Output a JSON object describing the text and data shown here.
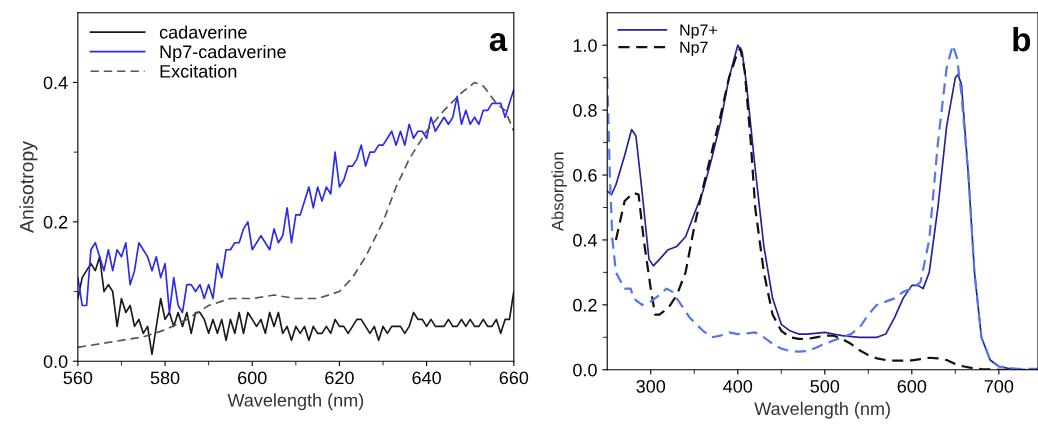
{
  "chart_data": [
    {
      "type": "line",
      "xlabel": "Wavelength (nm)",
      "ylabel": "Anisotropy",
      "xlim": [
        560,
        660
      ],
      "ylim": [
        0,
        0.5
      ],
      "xticks": [
        560,
        {
          "value": 570,
          "label": null
        },
        580,
        {
          "value": 590,
          "label": null
        },
        600,
        {
          "value": 610,
          "label": null
        },
        620,
        {
          "value": 630,
          "label": null
        },
        640,
        {
          "value": 650,
          "label": null
        },
        660
      ],
      "yticks": [
        {
          "value": 0,
          "label": "0.0"
        },
        {
          "value": 0.1,
          "label": null
        },
        0.2,
        {
          "value": 0.3,
          "label": null
        },
        0.4
      ],
      "legend": "top left",
      "grid": false,
      "annotations": [
        "a"
      ],
      "series": [
        {
          "name": "cadaverine",
          "color": "#1a1a1a",
          "line_style": "solid",
          "x": [
            560,
            561,
            562,
            563,
            564,
            565,
            566,
            567,
            568,
            569,
            570,
            571,
            572,
            573,
            574,
            575,
            576,
            577,
            578,
            579,
            580,
            581,
            582,
            583,
            584,
            585,
            586,
            587,
            588,
            589,
            590,
            591,
            592,
            593,
            594,
            595,
            596,
            597,
            598,
            599,
            600,
            601,
            602,
            603,
            604,
            605,
            606,
            607,
            608,
            609,
            610,
            611,
            612,
            613,
            614,
            615,
            616,
            617,
            618,
            619,
            620,
            621,
            622,
            623,
            624,
            625,
            626,
            627,
            628,
            629,
            630,
            631,
            632,
            633,
            634,
            635,
            636,
            637,
            638,
            639,
            640,
            641,
            642,
            643,
            644,
            645,
            646,
            647,
            648,
            649,
            650,
            651,
            652,
            653,
            654,
            655,
            656,
            657,
            658,
            659,
            660
          ],
          "values": [
            0.09,
            0.12,
            0.13,
            0.14,
            0.13,
            0.15,
            0.1,
            0.11,
            0.1,
            0.05,
            0.09,
            0.07,
            0.08,
            0.05,
            0.06,
            0.04,
            0.05,
            0.01,
            0.05,
            0.09,
            0.06,
            0.07,
            0.05,
            0.07,
            0.05,
            0.07,
            0.04,
            0.07,
            0.07,
            0.06,
            0.04,
            0.06,
            0.04,
            0.06,
            0.03,
            0.06,
            0.04,
            0.07,
            0.04,
            0.07,
            0.06,
            0.05,
            0.06,
            0.04,
            0.07,
            0.05,
            0.07,
            0.04,
            0.05,
            0.03,
            0.05,
            0.04,
            0.05,
            0.03,
            0.05,
            0.04,
            0.04,
            0.05,
            0.04,
            0.06,
            0.05,
            0.05,
            0.04,
            0.05,
            0.06,
            0.06,
            0.05,
            0.04,
            0.05,
            0.03,
            0.05,
            0.04,
            0.05,
            0.05,
            0.05,
            0.04,
            0.05,
            0.07,
            0.06,
            0.06,
            0.05,
            0.06,
            0.05,
            0.05,
            0.05,
            0.06,
            0.05,
            0.05,
            0.06,
            0.05,
            0.06,
            0.05,
            0.05,
            0.06,
            0.05,
            0.05,
            0.06,
            0.04,
            0.06,
            0.06,
            0.1
          ]
        },
        {
          "name": "Np7-cadaverine",
          "color": "#2a2af0",
          "line_style": "solid",
          "x": [
            560,
            561,
            562,
            563,
            564,
            565,
            566,
            567,
            568,
            569,
            570,
            571,
            572,
            573,
            574,
            575,
            576,
            577,
            578,
            579,
            580,
            581,
            582,
            583,
            584,
            585,
            586,
            587,
            588,
            589,
            590,
            591,
            592,
            593,
            594,
            595,
            596,
            597,
            598,
            599,
            600,
            601,
            602,
            603,
            604,
            605,
            606,
            607,
            608,
            609,
            610,
            611,
            612,
            613,
            614,
            615,
            616,
            617,
            618,
            619,
            620,
            621,
            622,
            623,
            624,
            625,
            626,
            627,
            628,
            629,
            630,
            631,
            632,
            633,
            634,
            635,
            636,
            637,
            638,
            639,
            640,
            641,
            642,
            643,
            644,
            645,
            646,
            647,
            648,
            649,
            650,
            651,
            652,
            653,
            654,
            655,
            656,
            657,
            658,
            659,
            660
          ],
          "values": [
            0.12,
            0.08,
            0.08,
            0.16,
            0.17,
            0.15,
            0.13,
            0.16,
            0.13,
            0.16,
            0.15,
            0.17,
            0.11,
            0.13,
            0.17,
            0.16,
            0.15,
            0.13,
            0.15,
            0.12,
            0.14,
            0.07,
            0.12,
            0.08,
            0.07,
            0.11,
            0.11,
            0.1,
            0.11,
            0.09,
            0.11,
            0.09,
            0.14,
            0.12,
            0.16,
            0.16,
            0.17,
            0.17,
            0.19,
            0.2,
            0.16,
            0.17,
            0.18,
            0.17,
            0.16,
            0.19,
            0.17,
            0.18,
            0.22,
            0.17,
            0.21,
            0.21,
            0.23,
            0.25,
            0.22,
            0.25,
            0.23,
            0.25,
            0.24,
            0.3,
            0.25,
            0.26,
            0.28,
            0.28,
            0.29,
            0.31,
            0.28,
            0.3,
            0.3,
            0.31,
            0.31,
            0.32,
            0.33,
            0.31,
            0.33,
            0.31,
            0.34,
            0.32,
            0.33,
            0.33,
            0.32,
            0.35,
            0.33,
            0.34,
            0.35,
            0.34,
            0.35,
            0.38,
            0.34,
            0.36,
            0.34,
            0.35,
            0.34,
            0.36,
            0.36,
            0.37,
            0.37,
            0.37,
            0.35,
            0.37,
            0.39
          ]
        },
        {
          "name": "Excitation",
          "color": "#555555",
          "line_style": "dashed",
          "x": [
            560,
            565,
            570,
            575,
            580,
            585,
            590,
            595,
            600,
            605,
            610,
            615,
            620,
            623,
            626,
            630,
            633,
            636,
            640,
            644,
            648,
            651,
            653,
            656,
            658,
            660
          ],
          "values": [
            0.02,
            0.025,
            0.03,
            0.035,
            0.045,
            0.06,
            0.08,
            0.09,
            0.09,
            0.095,
            0.09,
            0.09,
            0.1,
            0.12,
            0.15,
            0.2,
            0.25,
            0.29,
            0.33,
            0.36,
            0.385,
            0.4,
            0.395,
            0.37,
            0.36,
            0.33
          ]
        }
      ]
    },
    {
      "type": "line",
      "xlabel": "Wavelength (nm)",
      "ylabel": "Absorption",
      "xlim": [
        250,
        745
      ],
      "ylim": [
        0,
        1.1
      ],
      "xticks": [
        300,
        {
          "value": 350,
          "label": null
        },
        400,
        {
          "value": 450,
          "label": null
        },
        500,
        {
          "value": 550,
          "label": null
        },
        600,
        {
          "value": 650,
          "label": null
        },
        700
      ],
      "yticks": [
        {
          "value": 0,
          "label": "0.0"
        },
        {
          "value": 0.1,
          "label": null
        },
        0.2,
        {
          "value": 0.3,
          "label": null
        },
        0.4,
        {
          "value": 0.5,
          "label": null
        },
        0.6,
        {
          "value": 0.7,
          "label": null
        },
        0.8,
        {
          "value": 0.9,
          "label": null
        },
        {
          "value": 1.0,
          "label": "1.0"
        }
      ],
      "legend": "top left",
      "grid": false,
      "annotations": [
        "b"
      ],
      "series": [
        {
          "name": "Np7+",
          "color": "#22229c",
          "line_style": "solid",
          "x": [
            250,
            255,
            260,
            270,
            278,
            283,
            290,
            298,
            303,
            310,
            320,
            330,
            340,
            350,
            360,
            370,
            380,
            390,
            400,
            405,
            410,
            420,
            430,
            440,
            450,
            460,
            470,
            480,
            500,
            510,
            520,
            540,
            560,
            570,
            580,
            590,
            600,
            607,
            613,
            620,
            630,
            640,
            650,
            653,
            657,
            665,
            672,
            680,
            690,
            700,
            720,
            745
          ],
          "values": [
            0.55,
            0.54,
            0.57,
            0.66,
            0.74,
            0.72,
            0.55,
            0.34,
            0.32,
            0.34,
            0.37,
            0.38,
            0.41,
            0.48,
            0.55,
            0.65,
            0.76,
            0.9,
            1.0,
            0.98,
            0.88,
            0.62,
            0.38,
            0.22,
            0.14,
            0.12,
            0.11,
            0.11,
            0.115,
            0.11,
            0.105,
            0.1,
            0.1,
            0.11,
            0.16,
            0.22,
            0.26,
            0.26,
            0.25,
            0.3,
            0.5,
            0.75,
            0.9,
            0.91,
            0.88,
            0.6,
            0.3,
            0.1,
            0.03,
            0.01,
            0.0,
            0.0
          ]
        },
        {
          "name": "Np7",
          "color": "#111111",
          "line_style": "dashed",
          "x": [
            260,
            270,
            280,
            286,
            292,
            300,
            305,
            310,
            320,
            330,
            340,
            350,
            360,
            370,
            380,
            390,
            400,
            403,
            408,
            415,
            420,
            430,
            440,
            450,
            460,
            470,
            480,
            490,
            500,
            510,
            520,
            530,
            540,
            550,
            560,
            570,
            580,
            590,
            600,
            610,
            620,
            630,
            640,
            650,
            660,
            670,
            680,
            700,
            745
          ],
          "values": [
            0.4,
            0.52,
            0.545,
            0.54,
            0.4,
            0.25,
            0.17,
            0.17,
            0.19,
            0.23,
            0.3,
            0.44,
            0.56,
            0.67,
            0.78,
            0.9,
            0.98,
            0.99,
            0.92,
            0.7,
            0.5,
            0.3,
            0.17,
            0.12,
            0.1,
            0.095,
            0.095,
            0.1,
            0.105,
            0.105,
            0.095,
            0.08,
            0.06,
            0.045,
            0.035,
            0.03,
            0.028,
            0.028,
            0.029,
            0.033,
            0.037,
            0.035,
            0.03,
            0.018,
            0.01,
            0.005,
            0.002,
            0.0,
            0.0
          ]
        },
        {
          "color": "#5577ee",
          "line_style": "dashed",
          "x": [
            250,
            253,
            256,
            260,
            270,
            277,
            280,
            290,
            300,
            310,
            318,
            325,
            335,
            345,
            360,
            370,
            380,
            390,
            400,
            410,
            420,
            430,
            440,
            450,
            460,
            470,
            480,
            490,
            500,
            510,
            520,
            530,
            540,
            550,
            560,
            570,
            580,
            590,
            600,
            610,
            620,
            630,
            640,
            647,
            652,
            657,
            665,
            672,
            680,
            690,
            700,
            720,
            745
          ],
          "values": [
            0.9,
            0.6,
            0.4,
            0.3,
            0.25,
            0.25,
            0.22,
            0.2,
            0.21,
            0.23,
            0.25,
            0.24,
            0.2,
            0.16,
            0.12,
            0.1,
            0.105,
            0.115,
            0.11,
            0.112,
            0.115,
            0.1,
            0.08,
            0.065,
            0.058,
            0.056,
            0.058,
            0.068,
            0.08,
            0.09,
            0.1,
            0.11,
            0.13,
            0.17,
            0.2,
            0.21,
            0.22,
            0.24,
            0.25,
            0.27,
            0.4,
            0.7,
            0.93,
            1.0,
            0.96,
            0.85,
            0.6,
            0.3,
            0.1,
            0.03,
            0.01,
            0.003,
            0.003
          ]
        }
      ]
    }
  ]
}
